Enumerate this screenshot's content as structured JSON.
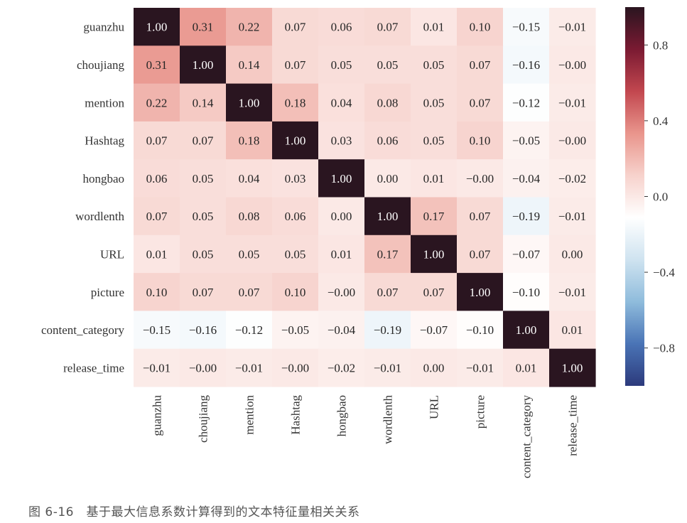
{
  "chart_data": {
    "type": "heatmap",
    "labels": [
      "guanzhu",
      "choujiang",
      "mention",
      "Hashtag",
      "hongbao",
      "wordlenth",
      "URL",
      "picture",
      "content_category",
      "release_time"
    ],
    "cell_text": [
      [
        "1.00",
        "0.31",
        "0.22",
        "0.07",
        "0.06",
        "0.07",
        "0.01",
        "0.10",
        "−0.15",
        "−0.01"
      ],
      [
        "0.31",
        "1.00",
        "0.14",
        "0.07",
        "0.05",
        "0.05",
        "0.05",
        "0.07",
        "−0.16",
        "−0.00"
      ],
      [
        "0.22",
        "0.14",
        "1.00",
        "0.18",
        "0.04",
        "0.08",
        "0.05",
        "0.07",
        "−0.12",
        "−0.01"
      ],
      [
        "0.07",
        "0.07",
        "0.18",
        "1.00",
        "0.03",
        "0.06",
        "0.05",
        "0.10",
        "−0.05",
        "−0.00"
      ],
      [
        "0.06",
        "0.05",
        "0.04",
        "0.03",
        "1.00",
        "0.00",
        "0.01",
        "−0.00",
        "−0.04",
        "−0.02"
      ],
      [
        "0.07",
        "0.05",
        "0.08",
        "0.06",
        "0.00",
        "1.00",
        "0.17",
        "0.07",
        "−0.19",
        "−0.01"
      ],
      [
        "0.01",
        "0.05",
        "0.05",
        "0.05",
        "0.01",
        "0.17",
        "1.00",
        "0.07",
        "−0.07",
        "0.00"
      ],
      [
        "0.10",
        "0.07",
        "0.07",
        "0.10",
        "−0.00",
        "0.07",
        "0.07",
        "1.00",
        "−0.10",
        "−0.01"
      ],
      [
        "−0.15",
        "−0.16",
        "−0.12",
        "−0.05",
        "−0.04",
        "−0.19",
        "−0.07",
        "−0.10",
        "1.00",
        "0.01"
      ],
      [
        "−0.01",
        "−0.00",
        "−0.01",
        "−0.00",
        "−0.02",
        "−0.01",
        "0.00",
        "−0.01",
        "0.01",
        "1.00"
      ]
    ],
    "values": [
      [
        1.0,
        0.31,
        0.22,
        0.07,
        0.06,
        0.07,
        0.01,
        0.1,
        -0.15,
        -0.01
      ],
      [
        0.31,
        1.0,
        0.14,
        0.07,
        0.05,
        0.05,
        0.05,
        0.07,
        -0.16,
        -0.0
      ],
      [
        0.22,
        0.14,
        1.0,
        0.18,
        0.04,
        0.08,
        0.05,
        0.07,
        -0.12,
        -0.01
      ],
      [
        0.07,
        0.07,
        0.18,
        1.0,
        0.03,
        0.06,
        0.05,
        0.1,
        -0.05,
        -0.0
      ],
      [
        0.06,
        0.05,
        0.04,
        0.03,
        1.0,
        0.0,
        0.01,
        -0.0,
        -0.04,
        -0.02
      ],
      [
        0.07,
        0.05,
        0.08,
        0.06,
        0.0,
        1.0,
        0.17,
        0.07,
        -0.19,
        -0.01
      ],
      [
        0.01,
        0.05,
        0.05,
        0.05,
        0.01,
        0.17,
        1.0,
        0.07,
        -0.07,
        0.0
      ],
      [
        0.1,
        0.07,
        0.07,
        0.1,
        -0.0,
        0.07,
        0.07,
        1.0,
        -0.1,
        -0.01
      ],
      [
        -0.15,
        -0.16,
        -0.12,
        -0.05,
        -0.04,
        -0.19,
        -0.07,
        -0.1,
        1.0,
        0.01
      ],
      [
        -0.01,
        -0.0,
        -0.01,
        -0.0,
        -0.02,
        -0.01,
        0.0,
        -0.01,
        0.01,
        1.0
      ]
    ],
    "vmin": -1.0,
    "vmax": 1.0,
    "colorbar_ticks": [
      0.8,
      0.4,
      0.0,
      -0.4,
      -0.8
    ],
    "colorbar_tick_labels": [
      "0.8",
      "0.4",
      "0.0",
      "−0.4",
      "−0.8"
    ],
    "colormap": [
      "#2c3a7c",
      "#4a74b6",
      "#8fbcdc",
      "#cfe3f0",
      "#ffffff",
      "#f7d2cc",
      "#e9958c",
      "#c2474f",
      "#7a1a32",
      "#2a1520"
    ],
    "title": "",
    "xlabel": "",
    "ylabel": ""
  },
  "caption": "图 6-16　基于最大信息系数计算得到的文本特征量相关关系"
}
